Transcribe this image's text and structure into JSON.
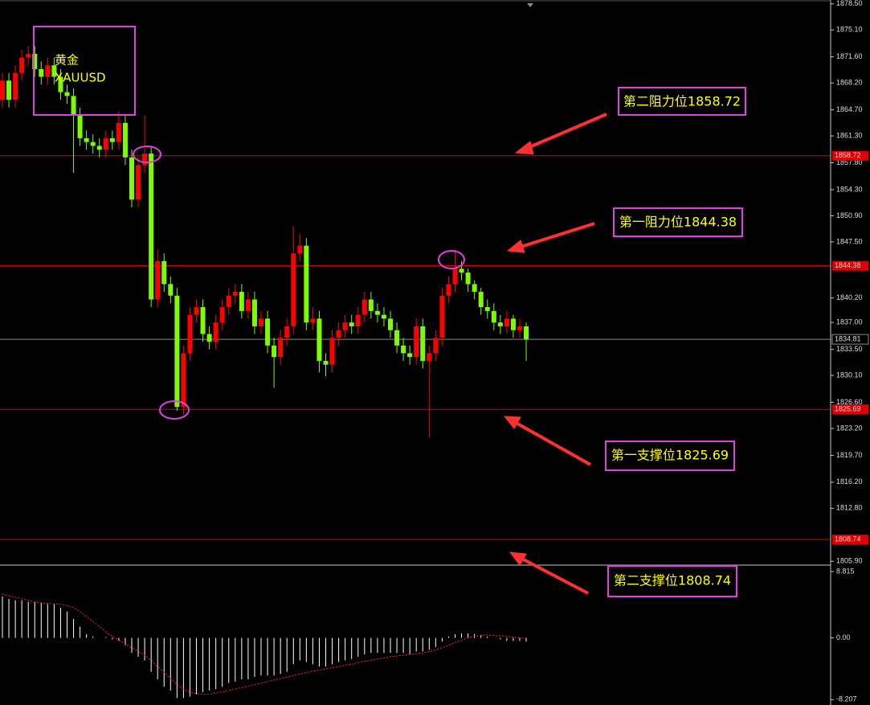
{
  "chart_data": [
    {
      "type": "candlestick",
      "title": "黄金",
      "subtitle": "XAUUSD",
      "up_color": "#ff0000",
      "down_color": "#7cfc00",
      "level_color": "#e00000",
      "last_color": "#8a8a8a",
      "ylim": [
        1805.4,
        1879.0
      ],
      "yticks": [
        {
          "value": 1878.5,
          "label": "1878.50"
        },
        {
          "value": 1875.1,
          "label": "1875.10"
        },
        {
          "value": 1871.6,
          "label": "1871.60"
        },
        {
          "value": 1868.2,
          "label": "1868.20"
        },
        {
          "value": 1864.7,
          "label": "1864.70"
        },
        {
          "value": 1861.3,
          "label": "1861.30"
        },
        {
          "value": 1857.8,
          "label": "1857.80"
        },
        {
          "value": 1854.3,
          "label": "1854.30"
        },
        {
          "value": 1850.9,
          "label": "1850.90"
        },
        {
          "value": 1847.5,
          "label": "1847.50"
        },
        {
          "value": 1840.2,
          "label": "1840.20"
        },
        {
          "value": 1837.0,
          "label": "1837.00"
        },
        {
          "value": 1833.5,
          "label": "1833.50"
        },
        {
          "value": 1830.1,
          "label": "1830.10"
        },
        {
          "value": 1826.6,
          "label": "1826.60"
        },
        {
          "value": 1823.2,
          "label": "1823.20"
        },
        {
          "value": 1819.7,
          "label": "1819.70"
        },
        {
          "value": 1816.2,
          "label": "1816.20"
        },
        {
          "value": 1812.8,
          "label": "1812.80"
        },
        {
          "value": 1805.9,
          "label": "1805.90"
        }
      ],
      "levels": [
        1858.72,
        1844.38,
        1825.69,
        1808.74
      ],
      "last_price": 1834.81,
      "annotations": [
        "第二阻力位1858.72",
        "第一阻力位1844.38",
        "第一支撑位1825.69",
        "第二支撑位1808.74"
      ],
      "open": [
        1866.0,
        1868.5,
        1866.0,
        1869.5,
        1871.5,
        1872.0,
        1870.0,
        1869.0,
        1870.5,
        1869.0,
        1867.0,
        1866.5,
        1864.0,
        1861.0,
        1860.5,
        1860.0,
        1859.5,
        1861.0,
        1860.5,
        1863.0,
        1858.5,
        1853.0,
        1857.5,
        1859.0,
        1840.0,
        1845.0,
        1842.0,
        1840.5,
        1826.0,
        1833.0,
        1838.0,
        1839.0,
        1835.5,
        1834.5,
        1837.0,
        1839.0,
        1840.5,
        1841.0,
        1838.5,
        1840.0,
        1836.5,
        1837.5,
        1834.0,
        1832.5,
        1835.0,
        1836.5,
        1846.0,
        1847.0,
        1837.0,
        1837.5,
        1832.0,
        1831.5,
        1835.0,
        1836.0,
        1837.0,
        1836.5,
        1838.0,
        1840.0,
        1838.5,
        1838.0,
        1837.5,
        1836.0,
        1834.0,
        1833.0,
        1832.5,
        1836.5,
        1832.0,
        1833.0,
        1835.0,
        1840.5,
        1842.0,
        1844.0,
        1843.5,
        1842.0,
        1841.0,
        1839.0,
        1838.5,
        1837.0,
        1836.5,
        1837.5,
        1836.0,
        1836.5
      ],
      "high": [
        1869.5,
        1869.5,
        1870.5,
        1872.5,
        1873.0,
        1873.0,
        1871.0,
        1871.5,
        1871.5,
        1870.0,
        1868.0,
        1867.5,
        1865.0,
        1862.0,
        1861.5,
        1861.0,
        1862.0,
        1862.0,
        1864.5,
        1864.0,
        1859.5,
        1858.5,
        1864.0,
        1860.0,
        1846.5,
        1846.0,
        1843.0,
        1841.5,
        1834.0,
        1839.0,
        1840.0,
        1840.0,
        1836.5,
        1838.0,
        1840.0,
        1841.5,
        1842.0,
        1842.0,
        1841.0,
        1841.0,
        1838.5,
        1838.5,
        1835.0,
        1836.0,
        1837.5,
        1849.5,
        1848.5,
        1848.0,
        1839.0,
        1838.5,
        1833.0,
        1836.0,
        1837.0,
        1838.0,
        1838.0,
        1839.0,
        1841.0,
        1841.0,
        1839.5,
        1839.0,
        1838.5,
        1837.0,
        1835.0,
        1834.0,
        1837.5,
        1837.5,
        1834.0,
        1836.0,
        1841.5,
        1843.0,
        1846.5,
        1845.0,
        1844.0,
        1842.5,
        1841.5,
        1840.0,
        1839.5,
        1838.0,
        1838.5,
        1838.0,
        1837.5,
        1837.0
      ],
      "low": [
        1865.0,
        1865.0,
        1865.0,
        1868.5,
        1870.5,
        1869.0,
        1868.0,
        1868.0,
        1868.0,
        1866.0,
        1865.5,
        1856.5,
        1860.0,
        1859.5,
        1859.0,
        1858.5,
        1858.5,
        1859.5,
        1859.5,
        1857.5,
        1852.0,
        1852.0,
        1856.5,
        1839.0,
        1839.0,
        1841.0,
        1839.5,
        1825.5,
        1825.0,
        1832.0,
        1837.0,
        1834.5,
        1833.5,
        1833.5,
        1836.0,
        1838.0,
        1839.5,
        1837.5,
        1837.5,
        1835.5,
        1835.5,
        1833.0,
        1828.5,
        1831.5,
        1834.0,
        1835.5,
        1845.0,
        1836.0,
        1836.0,
        1830.5,
        1830.0,
        1830.5,
        1834.0,
        1835.0,
        1835.5,
        1835.5,
        1837.0,
        1837.5,
        1837.0,
        1836.5,
        1835.0,
        1833.0,
        1832.0,
        1831.5,
        1831.5,
        1831.0,
        1822.0,
        1832.0,
        1834.0,
        1839.5,
        1841.0,
        1842.5,
        1841.0,
        1840.0,
        1838.0,
        1837.5,
        1836.0,
        1835.5,
        1835.5,
        1835.0,
        1835.0,
        1832.0
      ],
      "close": [
        1868.5,
        1866.0,
        1869.5,
        1871.5,
        1872.0,
        1870.0,
        1869.0,
        1870.5,
        1869.0,
        1867.0,
        1866.5,
        1864.0,
        1861.0,
        1860.5,
        1860.0,
        1859.5,
        1861.0,
        1860.5,
        1863.0,
        1858.5,
        1853.0,
        1857.5,
        1859.0,
        1840.0,
        1845.0,
        1842.0,
        1840.5,
        1826.0,
        1833.0,
        1838.0,
        1839.0,
        1835.5,
        1834.5,
        1837.0,
        1839.0,
        1840.5,
        1841.0,
        1838.5,
        1840.0,
        1836.5,
        1837.5,
        1834.0,
        1832.5,
        1835.0,
        1836.5,
        1846.0,
        1847.0,
        1837.0,
        1837.5,
        1832.0,
        1831.5,
        1835.0,
        1836.0,
        1837.0,
        1836.5,
        1838.0,
        1840.0,
        1838.5,
        1838.0,
        1837.5,
        1836.0,
        1834.0,
        1833.0,
        1832.5,
        1836.5,
        1832.0,
        1833.0,
        1835.0,
        1840.5,
        1842.0,
        1844.0,
        1843.5,
        1842.0,
        1841.0,
        1839.0,
        1838.5,
        1837.0,
        1836.5,
        1837.5,
        1836.0,
        1836.5,
        1834.8
      ]
    },
    {
      "type": "macd",
      "hist_color": "#ffffff",
      "signal_color": "#ff2020",
      "ylim": [
        -8.92,
        9.56
      ],
      "yticks": [
        8.815,
        {
          "value": 0,
          "label": "0.00"
        },
        -8.207
      ],
      "histogram": [
        5.5,
        5.2,
        5.0,
        5.0,
        4.8,
        4.8,
        4.7,
        4.5,
        4.5,
        4.0,
        3.5,
        2.5,
        1.5,
        0.5,
        0.2,
        0.0,
        0.1,
        -0.2,
        -0.4,
        -1.0,
        -2.0,
        -2.5,
        -3.0,
        -4.5,
        -5.5,
        -6.5,
        -7.0,
        -8.0,
        -8.0,
        -7.8,
        -7.5,
        -7.2,
        -7.0,
        -6.8,
        -6.5,
        -6.0,
        -5.8,
        -5.5,
        -5.5,
        -5.2,
        -5.0,
        -5.0,
        -5.0,
        -4.8,
        -4.5,
        -3.5,
        -3.0,
        -3.2,
        -3.5,
        -3.8,
        -3.8,
        -3.5,
        -3.2,
        -3.0,
        -2.8,
        -2.5,
        -2.2,
        -2.0,
        -2.0,
        -2.0,
        -2.0,
        -2.0,
        -2.0,
        -2.2,
        -1.8,
        -1.8,
        -1.6,
        -1.2,
        -0.5,
        0.2,
        0.5,
        0.6,
        0.6,
        0.5,
        0.4,
        0.2,
        0.0,
        -0.2,
        -0.4,
        -0.4,
        -0.4,
        -0.5
      ],
      "signal": [
        5.8,
        5.6,
        5.4,
        5.2,
        5.0,
        4.8,
        4.6,
        4.6,
        4.5,
        4.5,
        4.3,
        4.0,
        3.5,
        2.8,
        2.2,
        1.5,
        0.8,
        0.2,
        -0.3,
        -0.8,
        -1.3,
        -1.8,
        -2.3,
        -3.0,
        -3.8,
        -4.6,
        -5.4,
        -6.2,
        -6.8,
        -7.2,
        -7.4,
        -7.5,
        -7.5,
        -7.3,
        -7.2,
        -7.0,
        -6.8,
        -6.6,
        -6.4,
        -6.2,
        -6.0,
        -5.8,
        -5.6,
        -5.4,
        -5.2,
        -5.0,
        -4.8,
        -4.6,
        -4.4,
        -4.3,
        -4.1,
        -4.0,
        -3.8,
        -3.6,
        -3.5,
        -3.3,
        -3.1,
        -3.0,
        -2.8,
        -2.7,
        -2.5,
        -2.4,
        -2.3,
        -2.2,
        -2.1,
        -2.0,
        -1.8,
        -1.6,
        -1.3,
        -1.0,
        -0.6,
        -0.3,
        0.0,
        0.2,
        0.3,
        0.4,
        0.3,
        0.3,
        0.2,
        0.1,
        0.0,
        -0.1
      ]
    }
  ]
}
